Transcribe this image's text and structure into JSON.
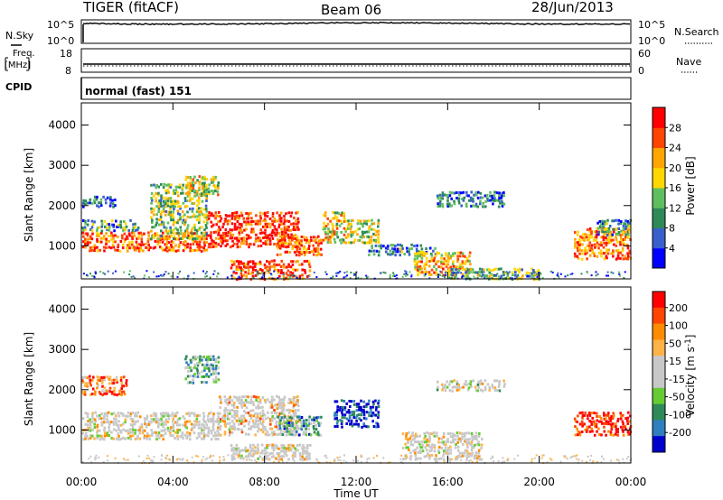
{
  "header": {
    "station": "TIGER (fitACF)",
    "beam": "Beam 06",
    "date": "28/Jun/2013"
  },
  "status_panels": {
    "nsky_label": "N.Sky",
    "nsearch_label": "N.Search",
    "freq_label_1": "Freq.",
    "freq_label_2": "[MHz]",
    "nave_label": "Nave",
    "cpid_label": "CPID",
    "cpid_value": "normal (fast) 151",
    "noise_ticks": {
      "top": "10^5",
      "bottom": "10^0"
    },
    "freq_ticks_left": {
      "top": "18",
      "bottom": "8"
    },
    "nave_ticks_right": {
      "top": "60",
      "bottom": "0"
    }
  },
  "x_axis": {
    "label": "Time UT",
    "ticks": [
      "00:00",
      "04:00",
      "08:00",
      "12:00",
      "16:00",
      "20:00",
      "00:00"
    ],
    "tick_hours": [
      0,
      4,
      8,
      12,
      16,
      20,
      24
    ],
    "range_hours": [
      0,
      24
    ]
  },
  "colors": {
    "power_scale": [
      "#0000ff",
      "#3a5fcd",
      "#2e8b57",
      "#5fbf5f",
      "#ffd700",
      "#ffa500",
      "#ff4500",
      "#ff0000"
    ],
    "velocity_scale": [
      "#ff0000",
      "#ff4500",
      "#ff8c00",
      "#ffb347",
      "#c8c8c8",
      "#c8c8c8",
      "#66cc33",
      "#2e8b57",
      "#2f7fbf",
      "#0000cd"
    ],
    "ground_scatter": "#b4b4b4"
  },
  "chart_data": [
    {
      "type": "heatmap",
      "name": "power",
      "ylabel": "Slant Range [km]",
      "xlabel": "",
      "ylim": [
        180,
        4550
      ],
      "xlim": [
        0,
        24
      ],
      "y_ticks": [
        "1000",
        "2000",
        "3000",
        "4000"
      ],
      "y_tick_values": [
        1000,
        2000,
        3000,
        4000
      ],
      "colorbar": {
        "label": "Power [dB]",
        "ticks": [
          "4",
          "8",
          "12",
          "16",
          "20",
          "24",
          "28"
        ],
        "tick_values": [
          4,
          8,
          12,
          16,
          20,
          24,
          28
        ],
        "range": [
          0,
          32
        ]
      },
      "regions": [
        {
          "t0": 0.0,
          "t1": 5.5,
          "r0": 900,
          "r1": 1400,
          "level": 0.8
        },
        {
          "t0": 0.0,
          "t1": 2.5,
          "r0": 1400,
          "r1": 1700,
          "level": 0.35
        },
        {
          "t0": 0.0,
          "t1": 1.5,
          "r0": 2000,
          "r1": 2300,
          "level": 0.2
        },
        {
          "t0": 3.0,
          "t1": 5.5,
          "r0": 1200,
          "r1": 2600,
          "level": 0.45
        },
        {
          "t0": 4.5,
          "t1": 6.0,
          "r0": 2300,
          "r1": 2800,
          "level": 0.55
        },
        {
          "t0": 5.5,
          "t1": 9.5,
          "r0": 1000,
          "r1": 1900,
          "level": 0.9
        },
        {
          "t0": 6.5,
          "t1": 10.0,
          "r0": 200,
          "r1": 700,
          "level": 0.85
        },
        {
          "t0": 8.5,
          "t1": 10.5,
          "r0": 800,
          "r1": 1300,
          "level": 0.8
        },
        {
          "t0": 10.5,
          "t1": 11.5,
          "r0": 1100,
          "r1": 1900,
          "level": 0.6
        },
        {
          "t0": 11.5,
          "t1": 13.0,
          "r0": 1100,
          "r1": 1700,
          "level": 0.5
        },
        {
          "t0": 12.5,
          "t1": 15.5,
          "r0": 800,
          "r1": 1100,
          "level": 0.3
        },
        {
          "t0": 14.5,
          "t1": 17.0,
          "r0": 300,
          "r1": 900,
          "level": 0.65
        },
        {
          "t0": 15.5,
          "t1": 18.5,
          "r0": 2000,
          "r1": 2400,
          "level": 0.25
        },
        {
          "t0": 16.0,
          "t1": 20.0,
          "r0": 200,
          "r1": 500,
          "level": 0.4
        },
        {
          "t0": 21.5,
          "t1": 24.0,
          "r0": 700,
          "r1": 1500,
          "level": 0.75
        },
        {
          "t0": 22.5,
          "t1": 24.0,
          "r0": 1300,
          "r1": 1700,
          "level": 0.3
        }
      ]
    },
    {
      "type": "heatmap",
      "name": "velocity",
      "ylabel": "Slant Range [km]",
      "xlabel": "Time UT",
      "ylim": [
        180,
        4550
      ],
      "xlim": [
        0,
        24
      ],
      "y_ticks": [
        "1000",
        "2000",
        "3000",
        "4000"
      ],
      "y_tick_values": [
        1000,
        2000,
        3000,
        4000
      ],
      "colorbar": {
        "label": "Velocity [m s^-1]",
        "ticks": [
          "200",
          "100",
          "50",
          "15",
          "-15",
          "-50",
          "-100",
          "-200"
        ],
        "tick_values": [
          200,
          100,
          50,
          15,
          -15,
          -50,
          -100,
          -200
        ]
      },
      "regions": [
        {
          "t0": 0.0,
          "t1": 6.0,
          "r0": 800,
          "r1": 1500,
          "level": 0.45
        },
        {
          "t0": 0.0,
          "t1": 2.0,
          "r0": 1900,
          "r1": 2400,
          "level": 0.2
        },
        {
          "t0": 4.5,
          "t1": 6.0,
          "r0": 2200,
          "r1": 2900,
          "level": 0.65
        },
        {
          "t0": 6.0,
          "t1": 9.5,
          "r0": 900,
          "r1": 1900,
          "level": 0.4
        },
        {
          "t0": 6.5,
          "t1": 10.0,
          "r0": 300,
          "r1": 700,
          "level": 0.45
        },
        {
          "t0": 8.5,
          "t1": 10.5,
          "r0": 900,
          "r1": 1400,
          "level": 0.7
        },
        {
          "t0": 11.0,
          "t1": 13.0,
          "r0": 1100,
          "r1": 1800,
          "level": 0.95
        },
        {
          "t0": 14.0,
          "t1": 17.5,
          "r0": 300,
          "r1": 1000,
          "level": 0.45
        },
        {
          "t0": 15.5,
          "t1": 18.5,
          "r0": 2000,
          "r1": 2300,
          "level": 0.5
        },
        {
          "t0": 21.5,
          "t1": 24.0,
          "r0": 900,
          "r1": 1500,
          "level": 0.05
        }
      ]
    }
  ]
}
